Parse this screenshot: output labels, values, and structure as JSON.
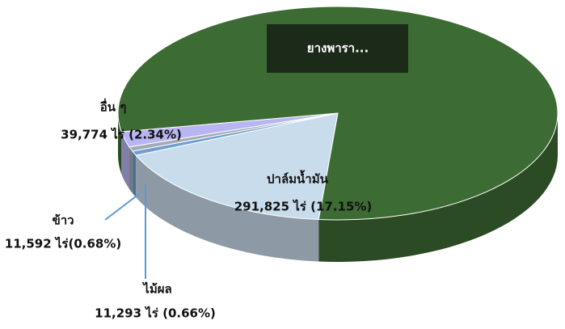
{
  "chart_data": {
    "type": "pie",
    "categories": [
      "ปาล์มน้ำมัน",
      "ไม้ผล",
      "ข้าว",
      "อื่น ๆ",
      "ยางพารา..."
    ],
    "values": [
      17.15,
      0.66,
      0.68,
      2.34,
      79.17
    ],
    "value_labels": [
      "291,825 ไร่ (17.15%)",
      "11,293 ไร่ (0.66%)",
      "11,592 ไร่(0.68%)",
      "39,774  ไร่ (2.34%)",
      null
    ],
    "colors": [
      "#c9dcec",
      "#6f9fd0",
      "#a4aab2",
      "#b7b5f2",
      "#3d6b34"
    ]
  }
}
